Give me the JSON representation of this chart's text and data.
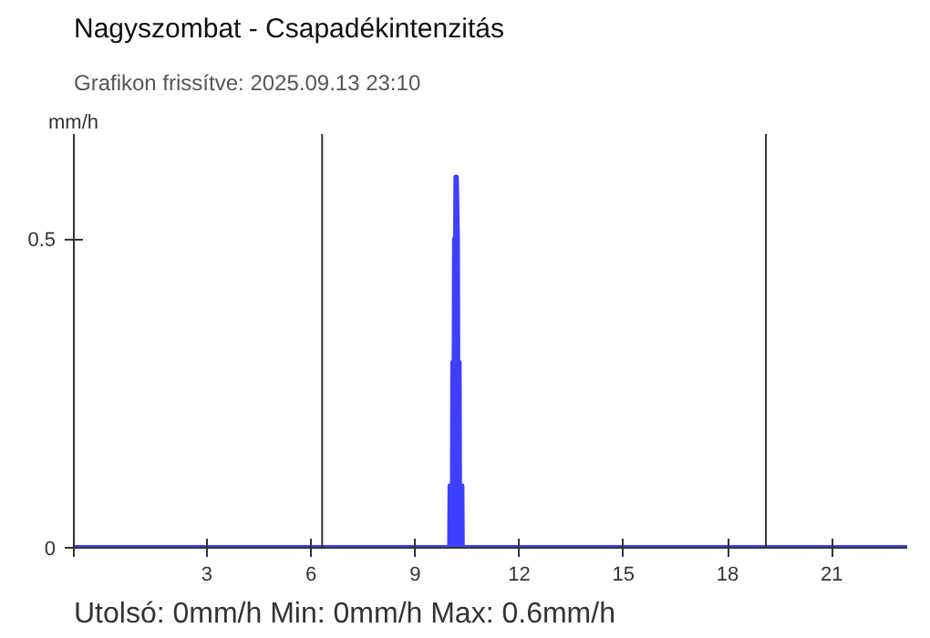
{
  "chart_data": {
    "type": "area",
    "title": "Nagyszombat - Csapadékintenzitás",
    "subtitle": "Grafikon frissítve: 2025.09.13 23:10",
    "ylabel": "mm/h",
    "annotations": [
      "Utolsó: 0mm/h  Min: 0mm/h  Max: 0.6mm/h"
    ],
    "series": [
      {
        "color": "#3f3fff",
        "x": [
          -0.83,
          10.0,
          10.01,
          10.08,
          10.09,
          10.13,
          10.14,
          10.17,
          10.18,
          10.21,
          10.22,
          10.26,
          10.27,
          10.34,
          10.35,
          23.17
        ],
        "values": [
          0,
          0,
          0.1,
          0.1,
          0.3,
          0.3,
          0.5,
          0.5,
          0.6,
          0.5,
          0.3,
          0.3,
          0.1,
          0.1,
          0,
          0
        ]
      }
    ],
    "xlim": [
      -0.83,
      23.17
    ],
    "ylim": [
      0,
      0.67
    ],
    "xticks": [
      {
        "value": -0.83,
        "label": null
      },
      3,
      6,
      9,
      12,
      15,
      18,
      21
    ],
    "yticks": [
      0,
      0.5
    ],
    "ref_lines": [
      {
        "axis": "x",
        "value": 6.32,
        "color": "#333333"
      },
      {
        "axis": "x",
        "value": 19.1,
        "color": "#333333"
      }
    ],
    "grid": false
  }
}
